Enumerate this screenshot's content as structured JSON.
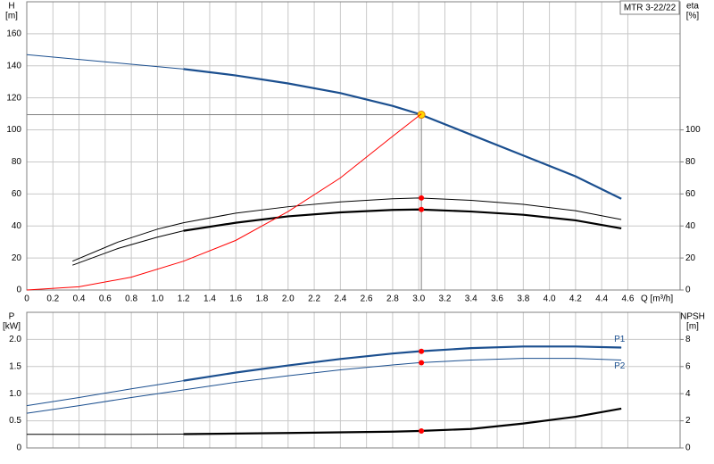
{
  "chart_data": [
    {
      "type": "line",
      "title": "MTR 3-22/22",
      "y_label": "H",
      "y_unit": "[m]",
      "y2_label": "eta",
      "y2_unit": "[%]",
      "x_label": "Q [m³/h]",
      "xlim": [
        0,
        5
      ],
      "xticks": [
        0,
        0.2,
        0.4,
        0.6,
        0.8,
        {
          "value": 1,
          "label": "1.0"
        },
        1.2,
        1.4,
        1.6,
        1.8,
        {
          "value": 2,
          "label": "2.0"
        },
        2.2,
        2.4,
        2.6,
        2.8,
        {
          "value": 3,
          "label": "3.0"
        },
        3.2,
        3.4,
        3.6,
        3.8,
        {
          "value": 4,
          "label": "4.0"
        },
        4.2,
        4.4,
        4.6
      ],
      "show_xtick_labels": true,
      "ylim": [
        0,
        180
      ],
      "yticks": [
        0,
        20,
        40,
        60,
        80,
        100,
        120,
        140,
        160
      ],
      "y2lim": [
        0,
        180
      ],
      "y2ticks": [
        0,
        20,
        40,
        60,
        80,
        100
      ],
      "grid": true,
      "highlight_from_x": 1.2,
      "duty_x": 3.02,
      "duty_lines": true,
      "series": [
        {
          "color": "#1b4f8f",
          "emphasis": true,
          "x": [
            0,
            0.4,
            0.8,
            1.2,
            1.6,
            2.0,
            2.4,
            2.8,
            3.0,
            3.4,
            3.8,
            4.2,
            4.55
          ],
          "values": [
            147,
            144,
            141,
            138,
            134,
            129,
            123,
            115,
            110,
            97,
            84,
            71,
            57
          ],
          "duty_value": 109.5,
          "duty_color": "#ffd700"
        },
        {
          "color": "#000000",
          "emphasis": false,
          "axis": "y2",
          "x": [
            0.35,
            0.7,
            1.0,
            1.2,
            1.6,
            2.0,
            2.4,
            2.8,
            3.0,
            3.4,
            3.8,
            4.2,
            4.55
          ],
          "values": [
            18,
            30,
            38,
            42,
            48,
            52,
            55,
            57,
            57.5,
            56,
            53.5,
            49.5,
            44
          ],
          "duty_value": 57.5,
          "duty_color": "#ff0000"
        },
        {
          "color": "#000000",
          "emphasis": true,
          "axis": "y2",
          "x": [
            0.35,
            0.7,
            1.0,
            1.2,
            1.6,
            2.0,
            2.4,
            2.8,
            3.0,
            3.4,
            3.8,
            4.2,
            4.55
          ],
          "values": [
            15.5,
            26,
            33,
            37,
            42,
            46,
            48.5,
            50,
            50.3,
            49,
            47,
            43.5,
            38.5
          ],
          "duty_value": 50.3,
          "duty_color": "#ff0000"
        },
        {
          "color": "#ff0000",
          "emphasis": false,
          "x": [
            0,
            0.4,
            0.8,
            1.2,
            1.6,
            2.0,
            2.4,
            2.8,
            3.02
          ],
          "values": [
            0,
            2,
            8,
            18,
            31,
            49,
            70,
            96,
            110
          ]
        }
      ]
    },
    {
      "type": "line",
      "y_label": "P",
      "y_unit": "[kW]",
      "y2_label": "NPSH",
      "y2_unit": "[m]",
      "xlim": [
        0,
        5
      ],
      "xticks": [
        0,
        0.2,
        0.4,
        0.6,
        0.8,
        1,
        1.2,
        1.4,
        1.6,
        1.8,
        2,
        2.2,
        2.4,
        2.6,
        2.8,
        3,
        3.2,
        3.4,
        3.6,
        3.8,
        4,
        4.2,
        4.4,
        4.6
      ],
      "show_xtick_labels": false,
      "ylim": [
        0,
        2.5
      ],
      "yticks": [
        0,
        0.5,
        {
          "value": 1,
          "label": "1.0"
        },
        1.5,
        {
          "value": 2,
          "label": "2.0"
        }
      ],
      "y2lim": [
        0,
        10
      ],
      "y2ticks": [
        0,
        2,
        4,
        6,
        8
      ],
      "grid": true,
      "highlight_from_x": 1.2,
      "duty_x": 3.02,
      "duty_lines": false,
      "series": [
        {
          "name": "P1",
          "color": "#1b4f8f",
          "emphasis": true,
          "x": [
            0,
            0.4,
            0.8,
            1.2,
            1.6,
            2.0,
            2.4,
            2.8,
            3.0,
            3.4,
            3.8,
            4.2,
            4.55
          ],
          "values": [
            0.78,
            0.93,
            1.09,
            1.24,
            1.39,
            1.52,
            1.64,
            1.74,
            1.78,
            1.84,
            1.87,
            1.87,
            1.85
          ],
          "duty_value": 1.78,
          "duty_color": "#ff0000"
        },
        {
          "name": "P2",
          "color": "#1b4f8f",
          "emphasis": false,
          "x": [
            0,
            0.4,
            0.8,
            1.2,
            1.6,
            2.0,
            2.4,
            2.8,
            3.0,
            3.4,
            3.8,
            4.2,
            4.55
          ],
          "values": [
            0.64,
            0.78,
            0.93,
            1.07,
            1.21,
            1.33,
            1.44,
            1.53,
            1.57,
            1.62,
            1.65,
            1.65,
            1.62
          ],
          "duty_value": 1.57,
          "duty_color": "#ff0000"
        },
        {
          "color": "#000000",
          "emphasis": true,
          "axis": "y2",
          "x": [
            0,
            0.4,
            0.8,
            1.2,
            1.6,
            2.0,
            2.4,
            2.8,
            3.0,
            3.4,
            3.8,
            4.2,
            4.55
          ],
          "values": [
            1.0,
            1.0,
            1.0,
            1.02,
            1.06,
            1.1,
            1.15,
            1.2,
            1.25,
            1.4,
            1.8,
            2.3,
            2.9
          ],
          "duty_value": 1.25,
          "duty_color": "#ff0000"
        }
      ]
    }
  ]
}
